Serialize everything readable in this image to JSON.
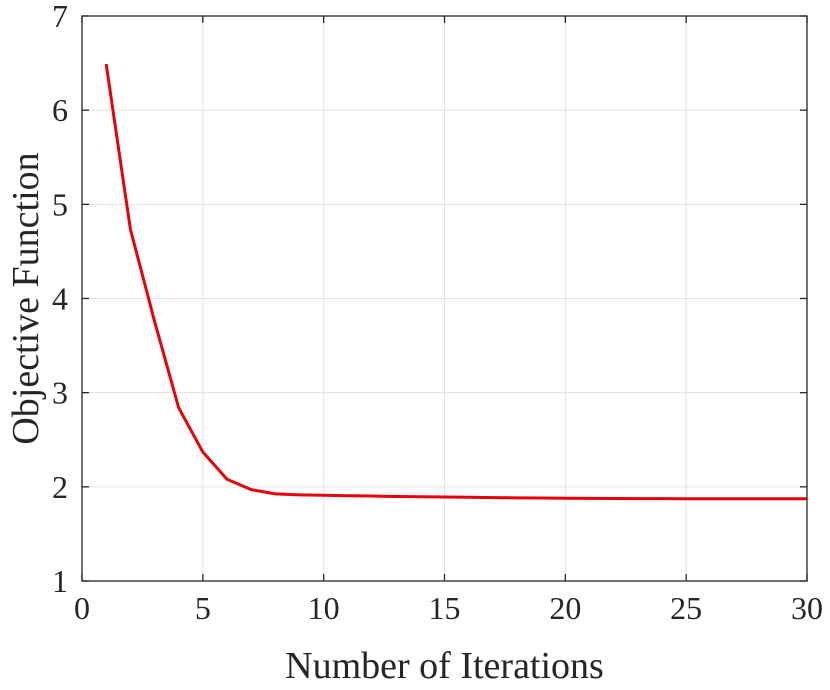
{
  "chart_data": {
    "type": "line",
    "title": "",
    "xlabel": "Number of Iterations",
    "ylabel": "Objective Function",
    "xlim": [
      0,
      30
    ],
    "ylim": [
      1,
      7
    ],
    "xticks": [
      0,
      5,
      10,
      15,
      20,
      25,
      30
    ],
    "yticks": [
      1,
      2,
      3,
      4,
      5,
      6,
      7
    ],
    "xtick_labels": [
      "0",
      "5",
      "10",
      "15",
      "20",
      "25",
      "30"
    ],
    "ytick_labels": [
      "1",
      "2",
      "3",
      "4",
      "5",
      "6",
      "7"
    ],
    "grid": true,
    "legend": "none",
    "series": [
      {
        "color": "#e8000b",
        "x": [
          1,
          2,
          3,
          4,
          5,
          6,
          7,
          8,
          9,
          10,
          11,
          12,
          13,
          14,
          15,
          16,
          17,
          18,
          19,
          20,
          21,
          22,
          23,
          24,
          25,
          26,
          27,
          28,
          29,
          30
        ],
        "y": [
          6.49,
          4.74,
          3.76,
          2.84,
          2.37,
          2.08,
          1.97,
          1.925,
          1.915,
          1.91,
          1.905,
          1.902,
          1.898,
          1.895,
          1.892,
          1.889,
          1.886,
          1.883,
          1.881,
          1.879,
          1.877,
          1.876,
          1.875,
          1.875,
          1.874,
          1.874,
          1.874,
          1.873,
          1.873,
          1.873
        ]
      }
    ]
  }
}
